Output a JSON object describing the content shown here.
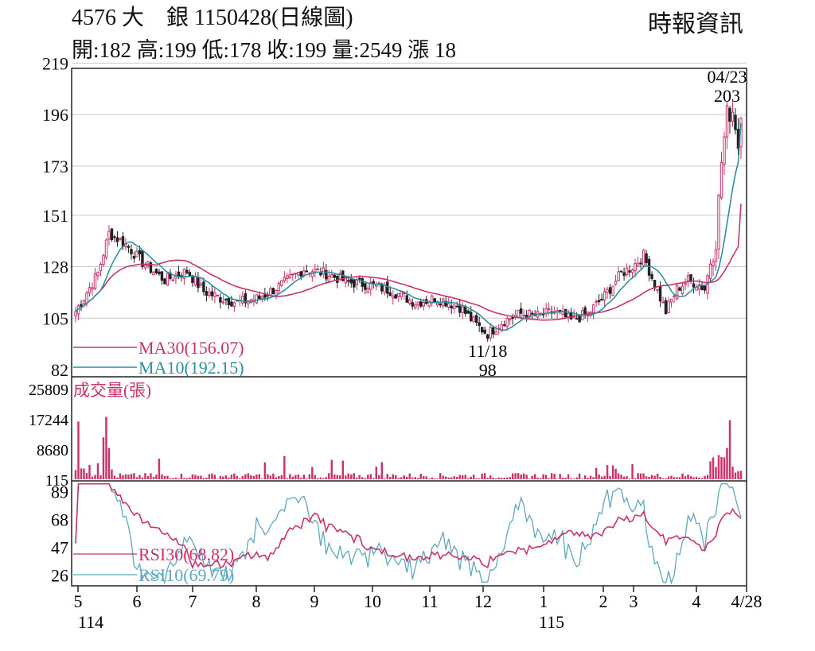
{
  "header": {
    "title": "4576 大　銀 1150428(日線圖)",
    "stats": "開:182 高:199 低:178 收:199 量:2549 漲 18",
    "source": "時報資訊"
  },
  "chart_data": [
    {
      "type": "candlestick",
      "panel": "price",
      "y_ticks": [
        219,
        196,
        173,
        151,
        128,
        105,
        82
      ],
      "ylim": [
        82,
        219
      ],
      "grid": true,
      "annotations": [
        {
          "date_label": "04/23",
          "value_label": "203"
        },
        {
          "date_label": "11/18",
          "value_label": "98"
        }
      ],
      "legend": [
        {
          "label": "MA30(156.07)",
          "color": "#c8336b"
        },
        {
          "label": "MA10(192.15)",
          "color": "#2f8fa3"
        }
      ],
      "candle_color": "#c8336b",
      "candle_down_color": "#222222",
      "key_values": {
        "start": 108,
        "may_peak": 143,
        "nov_low": 98,
        "jan_high": 133,
        "feb_low": 108,
        "apr_high": 203,
        "last_close": 199,
        "ma30_last": 156.07,
        "ma10_last": 192.15
      }
    },
    {
      "type": "bar",
      "panel": "volume",
      "title": "成交量(張)",
      "y_ticks": [
        25809,
        17244,
        8680,
        115
      ],
      "ylim": [
        115,
        25809
      ],
      "color": "#c8336b",
      "key_values": {
        "may_spike": 17800,
        "apr_spike": 16900,
        "last": 2549
      }
    },
    {
      "type": "line",
      "panel": "rsi",
      "y_ticks": [
        89,
        68,
        47,
        26
      ],
      "ylim": [
        19,
        96
      ],
      "series": [
        {
          "name": "RSI30(68.82)",
          "color": "#c8336b",
          "last": 68.82
        },
        {
          "name": "RSI10(69.79)",
          "color": "#5fa7bd",
          "last": 69.79
        }
      ]
    }
  ],
  "x_axis": {
    "months": [
      "5",
      "6",
      "7",
      "8",
      "9",
      "10",
      "11",
      "12",
      "1",
      "2",
      "3",
      "4",
      "4/28"
    ],
    "year_labels": [
      {
        "label": "114",
        "at_month": "5"
      },
      {
        "label": "115",
        "at_month": "1"
      }
    ]
  }
}
